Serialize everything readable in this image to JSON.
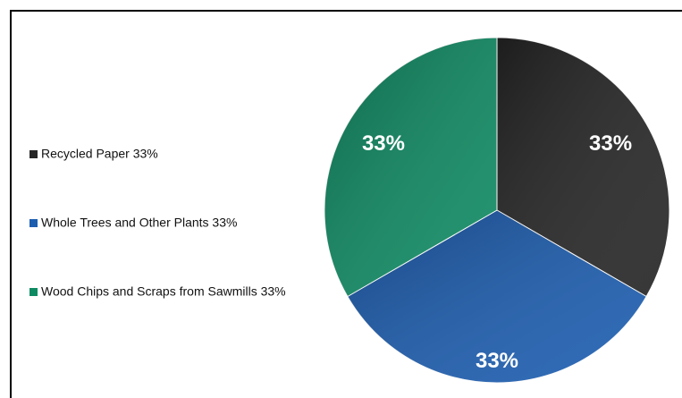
{
  "chart_data": {
    "type": "pie",
    "series": [
      {
        "name": "Recycled Paper 33%",
        "color": "#262626",
        "values": [
          33
        ],
        "value_labels": [
          "33%"
        ]
      },
      {
        "name": "Whole Trees and Other Plants 33%",
        "color": "#1c5db0",
        "values": [
          33
        ],
        "value_labels": [
          "33%"
        ]
      },
      {
        "name": "Wood Chips and Scraps from Sawmills 33%",
        "color": "#0e8a62",
        "values": [
          33
        ],
        "value_labels": [
          "33%"
        ]
      }
    ],
    "legend": "left"
  }
}
